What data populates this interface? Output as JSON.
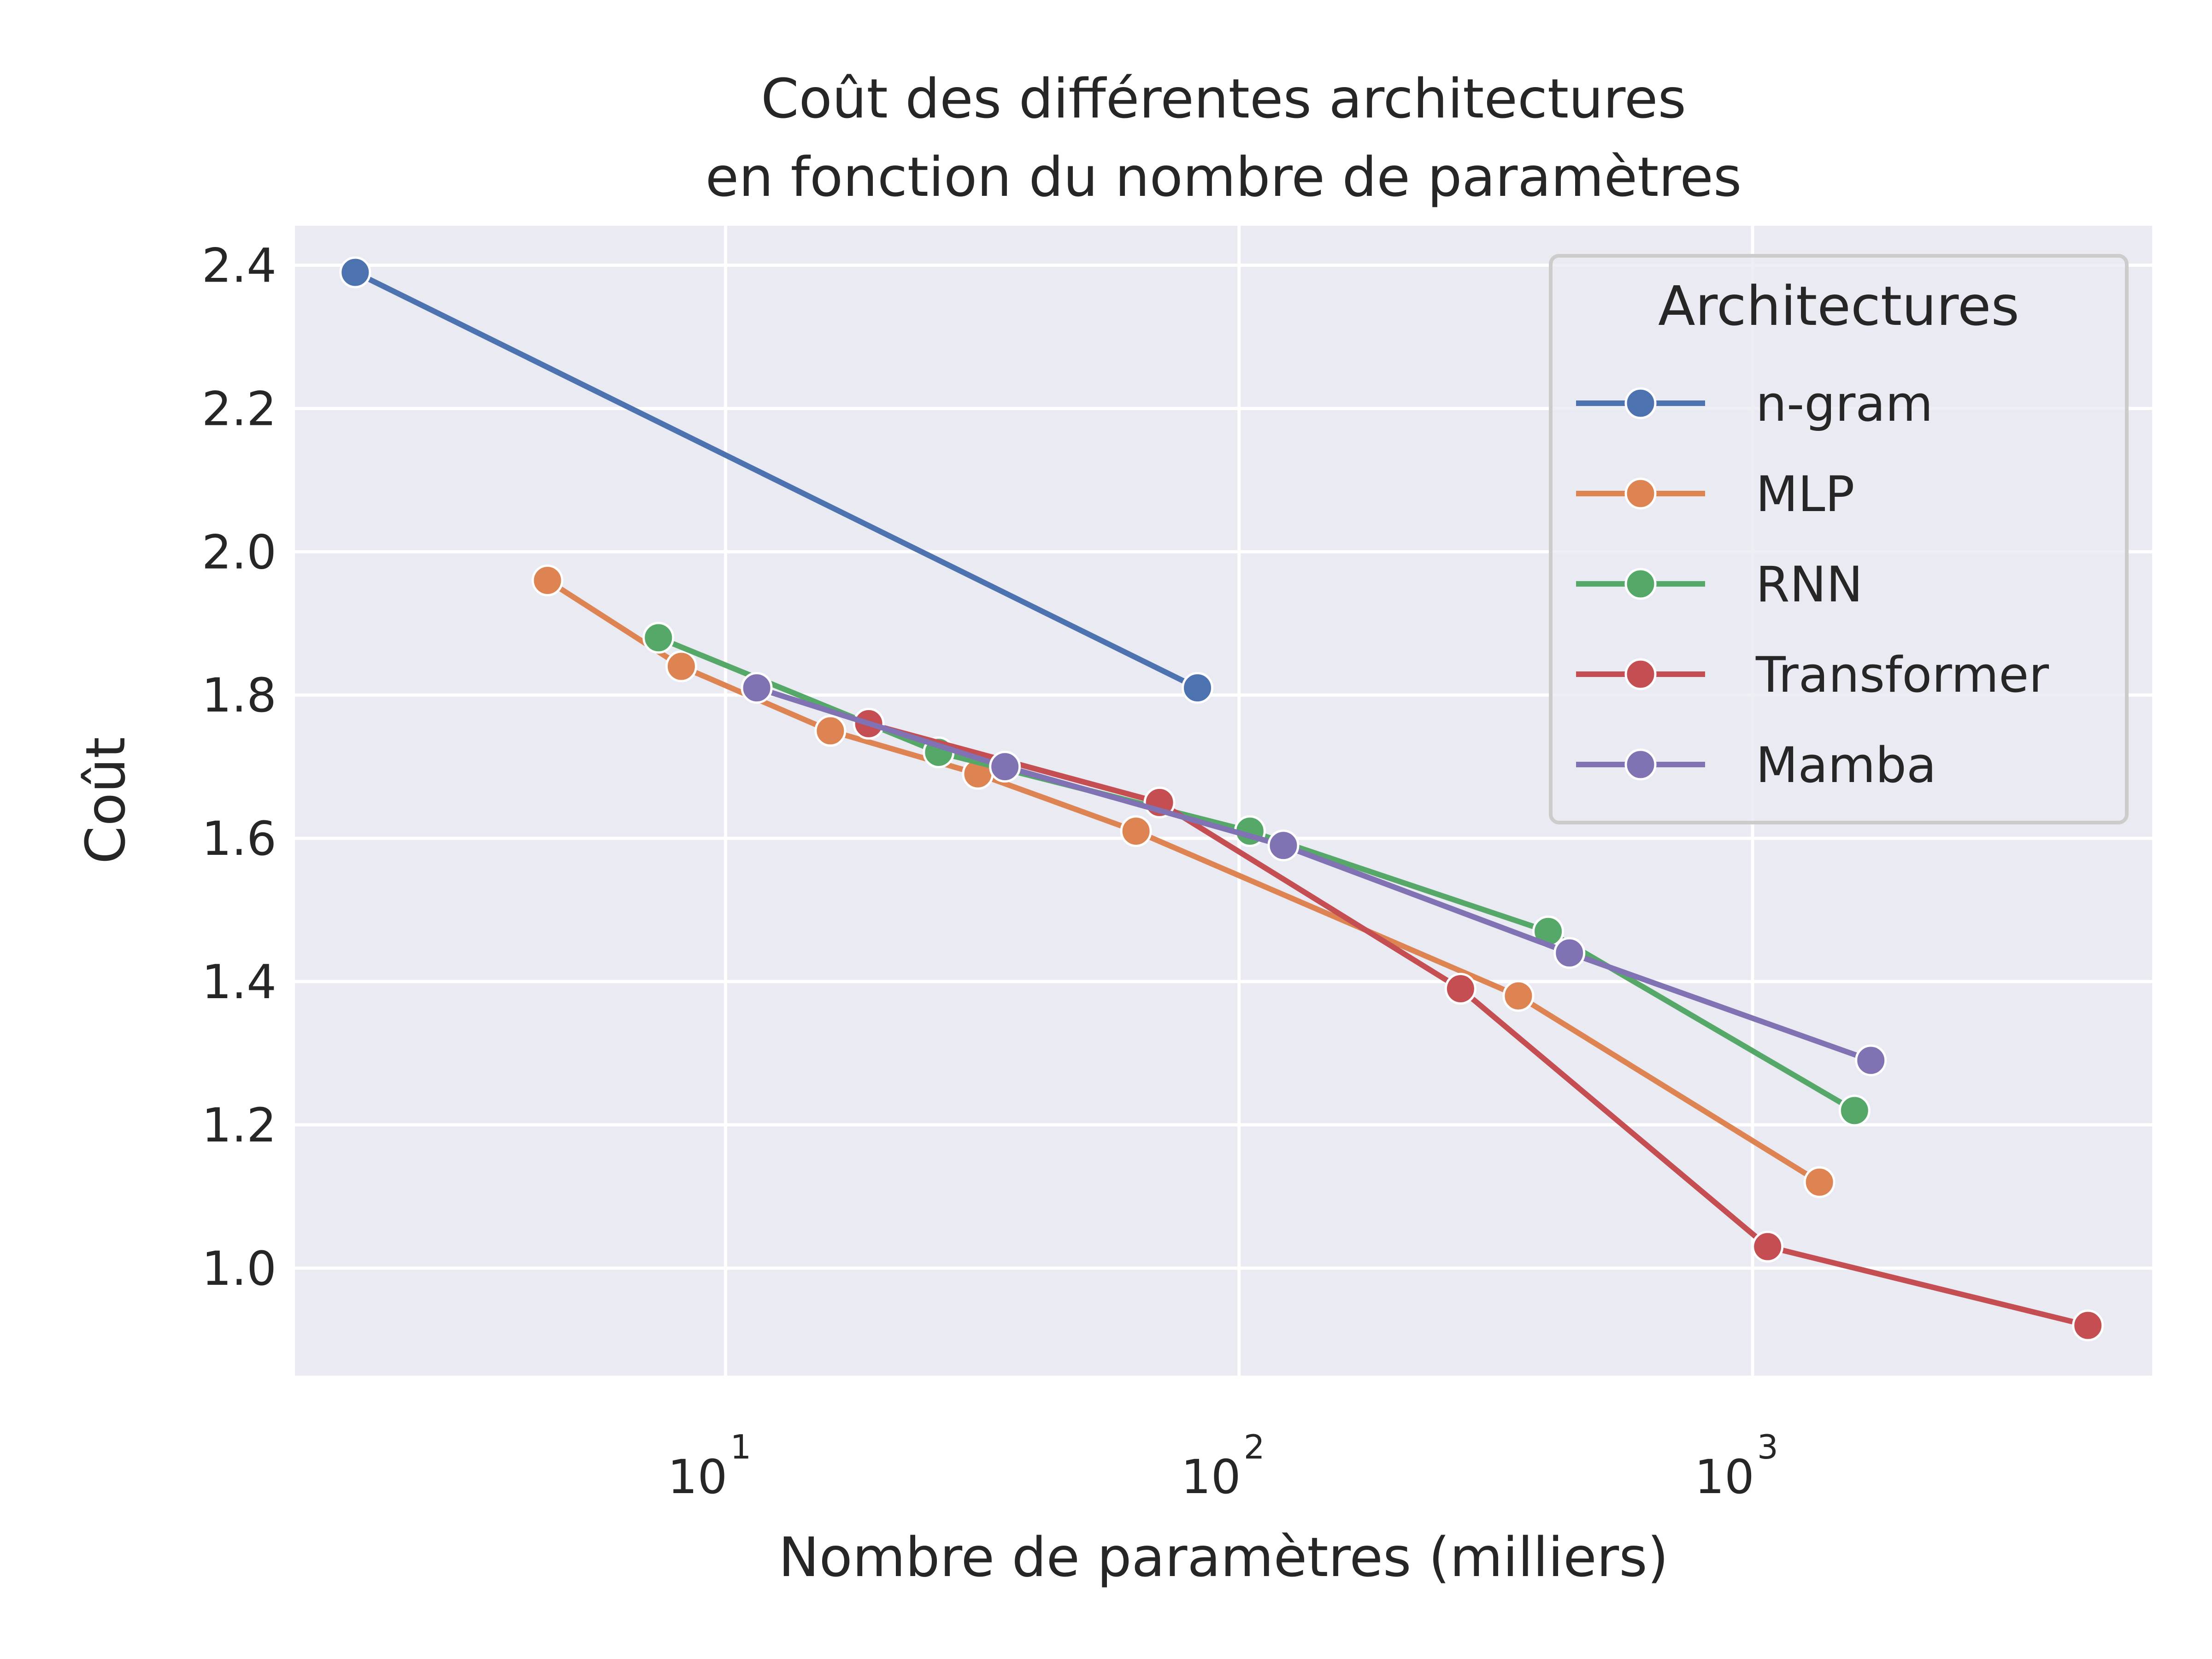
{
  "chart_data": {
    "type": "line",
    "title": [
      "Coût des différentes architectures",
      "en fonction du nombre de paramètres"
    ],
    "xlabel": "Nombre de paramètres (milliers)",
    "ylabel": "Coût",
    "x_scale": "log",
    "xlim": [
      1.45,
      6000
    ],
    "ylim": [
      0.85,
      2.455
    ],
    "x_ticks": [
      {
        "base": "10",
        "exp": "1",
        "value": 10
      },
      {
        "base": "10",
        "exp": "2",
        "value": 100
      },
      {
        "base": "10",
        "exp": "3",
        "value": 1000
      }
    ],
    "y_ticks": [
      "1.0",
      "1.2",
      "1.4",
      "1.6",
      "1.8",
      "2.0",
      "2.2",
      "2.4"
    ],
    "grid": true,
    "background": "#EAEAF2",
    "legend": {
      "title": "Architectures",
      "placement": "top-right"
    },
    "series": [
      {
        "name": "n-gram",
        "color": "#4C72B0",
        "x": [
          1.9,
          83
        ],
        "y": [
          2.39,
          1.81
        ]
      },
      {
        "name": "MLP",
        "color": "#DD8452",
        "x": [
          4.5,
          8.2,
          16,
          31,
          63,
          350,
          1350
        ],
        "y": [
          1.96,
          1.84,
          1.75,
          1.69,
          1.61,
          1.38,
          1.12
        ]
      },
      {
        "name": "RNN",
        "color": "#55A868",
        "x": [
          7.4,
          26,
          105,
          400,
          1580
        ],
        "y": [
          1.88,
          1.72,
          1.61,
          1.47,
          1.22
        ]
      },
      {
        "name": "Transformer",
        "color": "#C44E52",
        "x": [
          19,
          70,
          270,
          1070,
          4500
        ],
        "y": [
          1.76,
          1.65,
          1.39,
          1.03,
          0.92
        ]
      },
      {
        "name": "Mamba",
        "color": "#8172B3",
        "x": [
          11.5,
          35,
          122,
          440,
          1700
        ],
        "y": [
          1.81,
          1.7,
          1.59,
          1.44,
          1.29
        ]
      }
    ]
  }
}
